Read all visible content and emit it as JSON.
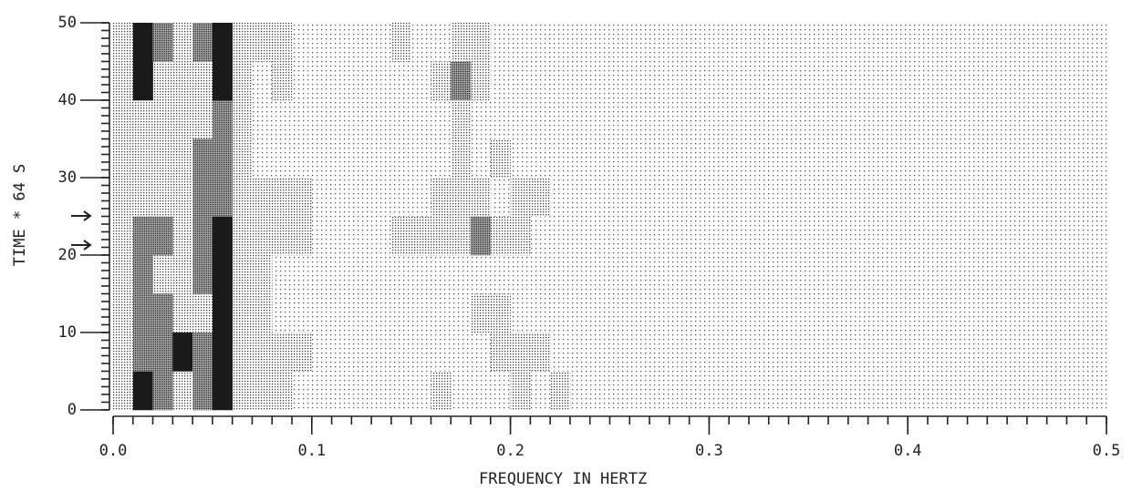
{
  "chart_data": {
    "type": "heatmap",
    "xlabel": "FREQUENCY IN HERTZ",
    "ylabel": "TIME  * 64 S",
    "xlim": [
      0,
      0.5
    ],
    "ylim": [
      0,
      50
    ],
    "xticks": [
      {
        "value": 0,
        "label": "0.0"
      },
      0.1,
      0.2,
      0.3,
      0.4,
      0.5
    ],
    "yticks": [
      0,
      10,
      20,
      30,
      40,
      50
    ],
    "x_minor_step": 0.01,
    "y_minor_step": 1,
    "x_bin_width": 0.01,
    "y_bin_height": 5,
    "color": "#1a1a1a",
    "values": [
      [
        1,
        3,
        2,
        1,
        2,
        3,
        1,
        1,
        1,
        0,
        0,
        0,
        0,
        0,
        0,
        0,
        1,
        0,
        0,
        0,
        1,
        0,
        1,
        0,
        0,
        0,
        0,
        0,
        0,
        0,
        0,
        0,
        0,
        0,
        0,
        0,
        0,
        0,
        0,
        0,
        0,
        0,
        0,
        0,
        0,
        0,
        0,
        0,
        0,
        0
      ],
      [
        1,
        2,
        2,
        3,
        2,
        3,
        1,
        1,
        1,
        1,
        0,
        0,
        0,
        0,
        0,
        0,
        0,
        0,
        0,
        1,
        1,
        1,
        0,
        0,
        0,
        0,
        0,
        0,
        0,
        0,
        0,
        0,
        0,
        0,
        0,
        0,
        0,
        0,
        0,
        0,
        0,
        0,
        0,
        0,
        0,
        0,
        0,
        0,
        0,
        0
      ],
      [
        1,
        2,
        2,
        1,
        1,
        3,
        1,
        1,
        0,
        0,
        0,
        0,
        0,
        0,
        0,
        0,
        0,
        0,
        1,
        1,
        0,
        0,
        0,
        0,
        0,
        0,
        0,
        0,
        0,
        0,
        0,
        0,
        0,
        0,
        0,
        0,
        0,
        0,
        0,
        0,
        0,
        0,
        0,
        0,
        0,
        0,
        0,
        0,
        0,
        0
      ],
      [
        1,
        2,
        1,
        1,
        2,
        3,
        1,
        1,
        0,
        0,
        0,
        0,
        0,
        0,
        0,
        0,
        0,
        0,
        0,
        0,
        0,
        0,
        0,
        0,
        0,
        0,
        0,
        0,
        0,
        0,
        0,
        0,
        0,
        0,
        0,
        0,
        0,
        0,
        0,
        0,
        0,
        0,
        0,
        0,
        0,
        0,
        0,
        0,
        0,
        0
      ],
      [
        1,
        2,
        2,
        1,
        2,
        3,
        1,
        1,
        1,
        1,
        0,
        0,
        0,
        0,
        1,
        1,
        1,
        1,
        2,
        1,
        1,
        0,
        0,
        0,
        0,
        0,
        0,
        0,
        0,
        0,
        0,
        0,
        0,
        0,
        0,
        0,
        0,
        0,
        0,
        0,
        0,
        0,
        0,
        0,
        0,
        0,
        0,
        0,
        0,
        0
      ],
      [
        1,
        1,
        1,
        1,
        2,
        2,
        1,
        1,
        1,
        1,
        0,
        0,
        0,
        0,
        0,
        0,
        1,
        1,
        1,
        0,
        1,
        1,
        0,
        0,
        0,
        0,
        0,
        0,
        0,
        0,
        0,
        0,
        0,
        0,
        0,
        0,
        0,
        0,
        0,
        0,
        0,
        0,
        0,
        0,
        0,
        0,
        0,
        0,
        0,
        0
      ],
      [
        1,
        1,
        1,
        1,
        2,
        2,
        1,
        0,
        0,
        0,
        0,
        0,
        0,
        0,
        0,
        0,
        0,
        1,
        0,
        1,
        0,
        0,
        0,
        0,
        0,
        0,
        0,
        0,
        0,
        0,
        0,
        0,
        0,
        0,
        0,
        0,
        0,
        0,
        0,
        0,
        0,
        0,
        0,
        0,
        0,
        0,
        0,
        0,
        0,
        0
      ],
      [
        1,
        1,
        1,
        1,
        1,
        2,
        1,
        0,
        0,
        0,
        0,
        0,
        0,
        0,
        0,
        0,
        0,
        1,
        0,
        0,
        0,
        0,
        0,
        0,
        0,
        0,
        0,
        0,
        0,
        0,
        0,
        0,
        0,
        0,
        0,
        0,
        0,
        0,
        0,
        0,
        0,
        0,
        0,
        0,
        0,
        0,
        0,
        0,
        0,
        0
      ],
      [
        1,
        3,
        1,
        1,
        1,
        3,
        1,
        0,
        1,
        0,
        0,
        0,
        0,
        0,
        0,
        0,
        1,
        2,
        1,
        0,
        0,
        0,
        0,
        0,
        0,
        0,
        0,
        0,
        0,
        0,
        0,
        0,
        0,
        0,
        0,
        0,
        0,
        0,
        0,
        0,
        0,
        0,
        0,
        0,
        0,
        0,
        0,
        0,
        0,
        0
      ],
      [
        1,
        3,
        2,
        1,
        2,
        3,
        1,
        1,
        1,
        0,
        0,
        0,
        0,
        0,
        1,
        0,
        0,
        1,
        1,
        0,
        0,
        0,
        0,
        0,
        0,
        0,
        0,
        0,
        0,
        0,
        0,
        0,
        0,
        0,
        0,
        0,
        0,
        0,
        0,
        0,
        0,
        0,
        0,
        0,
        0,
        0,
        0,
        0,
        0,
        0
      ]
    ]
  }
}
